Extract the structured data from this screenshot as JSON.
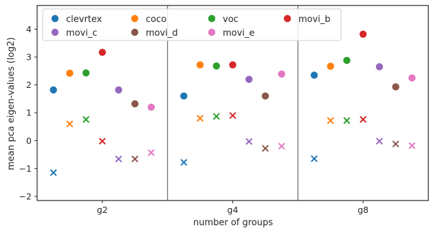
{
  "chart_data": {
    "type": "scatter",
    "xlabel": "number of groups",
    "ylabel": "mean pca eigen-values (log2)",
    "categories": [
      "g2",
      "g4",
      "g8"
    ],
    "ylim": [
      -2.15,
      4.85
    ],
    "yticks": [
      -2,
      -1,
      0,
      1,
      2,
      3,
      4
    ],
    "grid": false,
    "legend_position": "top-left",
    "marker_legend": "dots",
    "second_marker": "cross",
    "series": [
      {
        "name": "clevrtex",
        "color": "#1f77b4",
        "dot": [
          1.82,
          1.6,
          2.35
        ],
        "cross": [
          -1.15,
          -0.78,
          -0.65
        ]
      },
      {
        "name": "coco",
        "color": "#ff7f0e",
        "dot": [
          2.42,
          2.72,
          2.67
        ],
        "cross": [
          0.6,
          0.8,
          0.72
        ]
      },
      {
        "name": "voc",
        "color": "#2ca02c",
        "dot": [
          2.43,
          2.68,
          2.88
        ],
        "cross": [
          0.76,
          0.87,
          0.72
        ]
      },
      {
        "name": "movi_b",
        "color": "#d62728",
        "dot": [
          3.17,
          2.72,
          3.82
        ],
        "cross": [
          -0.02,
          0.9,
          0.76
        ]
      },
      {
        "name": "movi_c",
        "color": "#9467bd",
        "dot": [
          1.82,
          2.2,
          2.65
        ],
        "cross": [
          -0.66,
          -0.03,
          -0.02
        ]
      },
      {
        "name": "movi_d",
        "color": "#8c564b",
        "dot": [
          1.32,
          1.6,
          1.93
        ],
        "cross": [
          -0.66,
          -0.28,
          -0.12
        ]
      },
      {
        "name": "movi_e",
        "color": "#e377c2",
        "dot": [
          1.2,
          2.39,
          2.25
        ],
        "cross": [
          -0.43,
          -0.2,
          -0.18
        ]
      }
    ]
  }
}
